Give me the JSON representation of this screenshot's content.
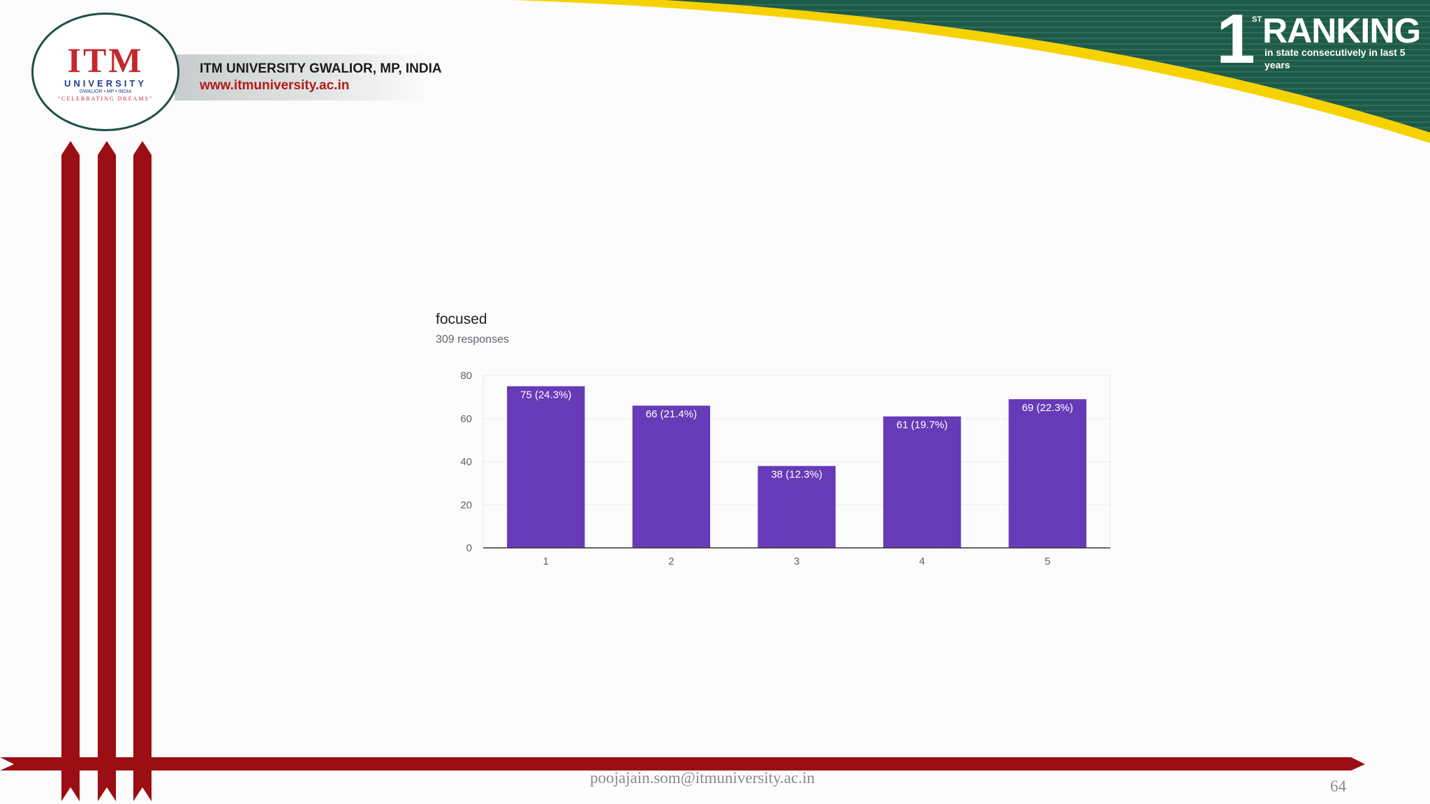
{
  "header": {
    "logo_text": "ITM",
    "logo_university": "UNIVERSITY",
    "logo_location": "GWALIOR • MP • INDIA",
    "logo_tagline": "\"CELEBRATING DREAMS\"",
    "university_name": "ITM UNIVERSITY GWALIOR, MP, INDIA",
    "website": "www.itmuniversity.ac.in"
  },
  "ranking": {
    "number": "1",
    "superscript": "ST",
    "word": "RANKING",
    "subtitle": "in state consecutively in last 5 years"
  },
  "chart_data": {
    "type": "bar",
    "title": "focused",
    "subtitle": "309 responses",
    "categories": [
      "1",
      "2",
      "3",
      "4",
      "5"
    ],
    "values": [
      75,
      66,
      38,
      61,
      69
    ],
    "data_labels": [
      "75 (24.3%)",
      "66 (21.4%)",
      "38 (12.3%)",
      "61 (19.7%)",
      "69 (22.3%)"
    ],
    "ylim": [
      0,
      80
    ],
    "yticks": [
      0,
      20,
      40,
      60,
      80
    ],
    "grid": true,
    "bar_color": "#673ab7"
  },
  "footer": {
    "email": "poojajain.som@itmuniversity.ac.in",
    "page_number": "64"
  },
  "colors": {
    "accent_red": "#9b0e14",
    "accent_green": "#1e5a48",
    "accent_yellow": "#f5d200"
  }
}
